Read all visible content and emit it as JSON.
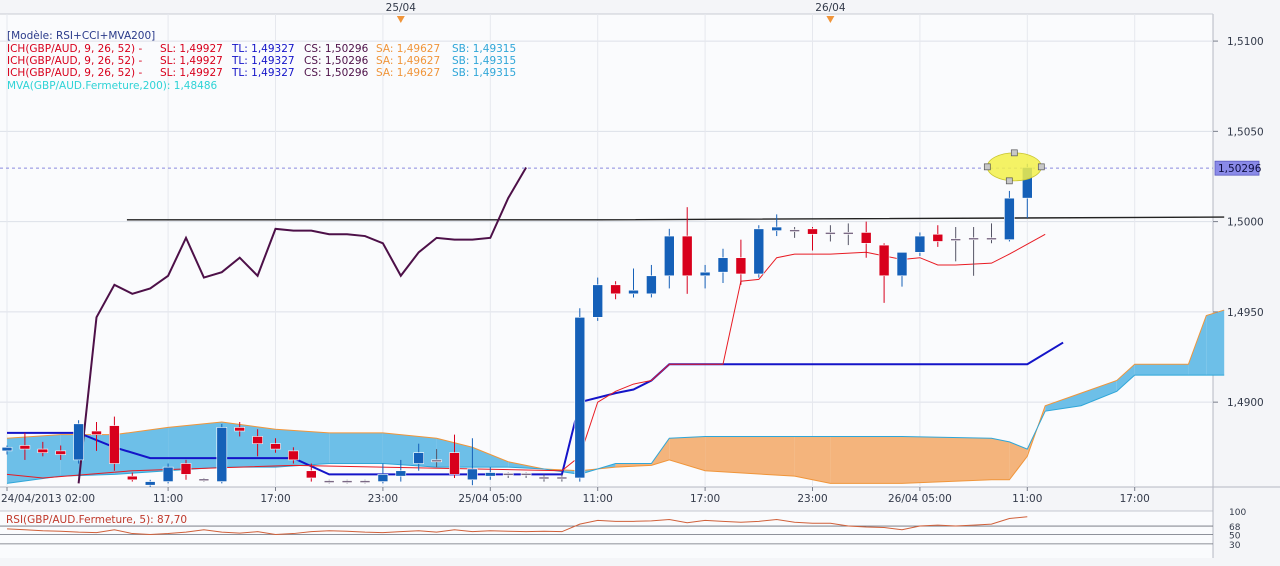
{
  "chart_data": [
    {
      "type": "candlestick",
      "model_label": "[Modèle: RSI+CCI+MVA200]",
      "legend": [
        {
          "name": "ICH(GBP/AUD, 9, 26, 52) -",
          "sl": "SL: 1,49927",
          "tl": "TL: 1,49327",
          "cs": "CS: 1,50296",
          "sa": "SA: 1,49627",
          "sb": "SB: 1,49315"
        },
        {
          "name": "ICH(GBP/AUD, 9, 26, 52) -",
          "sl": "SL: 1,49927",
          "tl": "TL: 1,49327",
          "cs": "CS: 1,50296",
          "sa": "SA: 1,49627",
          "sb": "SB: 1,49315"
        },
        {
          "name": "ICH(GBP/AUD, 9, 26, 52) -",
          "sl": "SL: 1,49927",
          "tl": "TL: 1,49327",
          "cs": "CS: 1,50296",
          "sa": "SA: 1,49627",
          "sb": "SB: 1,49315"
        }
      ],
      "mva_legend": "MVA(GBP/AUD.Fermeture,200): 1,48486",
      "y_ticks": [
        {
          "v": 1.51,
          "label": "1,5100"
        },
        {
          "v": 1.505,
          "label": "1,5050"
        },
        {
          "v": 1.5,
          "label": "1,5000"
        },
        {
          "v": 1.495,
          "label": "1,4950"
        },
        {
          "v": 1.49,
          "label": "1,4900"
        }
      ],
      "ylim": [
        1.4853,
        1.5115
      ],
      "x_period_count": 68,
      "x_ticks": [
        {
          "i": 0,
          "label": "24/04/2013 02:00"
        },
        {
          "i": 9,
          "label": "11:00"
        },
        {
          "i": 15,
          "label": "17:00"
        },
        {
          "i": 21,
          "label": "23:00"
        },
        {
          "i": 27,
          "label": "25/04 05:00"
        },
        {
          "i": 33,
          "label": "11:00"
        },
        {
          "i": 39,
          "label": "17:00"
        },
        {
          "i": 45,
          "label": "23:00"
        },
        {
          "i": 51,
          "label": "26/04 05:00"
        },
        {
          "i": 57,
          "label": "11:00"
        },
        {
          "i": 63,
          "label": "17:00"
        }
      ],
      "top_markers": [
        {
          "i": 22,
          "label": "25/04"
        },
        {
          "i": 46,
          "label": "26/04"
        }
      ],
      "current_price": {
        "value": 1.50296,
        "label": "1,50296"
      },
      "resistance_line": [
        [
          6.7,
          1.5001
        ],
        [
          33,
          1.5001
        ],
        [
          68,
          1.50025
        ]
      ],
      "candles": [
        {
          "i": 0,
          "o": 1.4873,
          "h": 1.4876,
          "l": 1.4871,
          "c": 1.4875
        },
        {
          "i": 1,
          "o": 1.4876,
          "h": 1.4883,
          "l": 1.4868,
          "c": 1.4874
        },
        {
          "i": 2,
          "o": 1.4874,
          "h": 1.4878,
          "l": 1.487,
          "c": 1.4872
        },
        {
          "i": 3,
          "o": 1.4873,
          "h": 1.4876,
          "l": 1.4868,
          "c": 1.4871
        },
        {
          "i": 4,
          "o": 1.4868,
          "h": 1.489,
          "l": 1.4866,
          "c": 1.4888
        },
        {
          "i": 5,
          "o": 1.4884,
          "h": 1.4889,
          "l": 1.4873,
          "c": 1.4882
        },
        {
          "i": 6,
          "o": 1.4887,
          "h": 1.4892,
          "l": 1.4862,
          "c": 1.4866
        },
        {
          "i": 7,
          "o": 1.4859,
          "h": 1.4861,
          "l": 1.4856,
          "c": 1.4857
        },
        {
          "i": 8,
          "o": 1.4854,
          "h": 1.4857,
          "l": 1.4853,
          "c": 1.4856
        },
        {
          "i": 9,
          "o": 1.4856,
          "h": 1.4866,
          "l": 1.4855,
          "c": 1.4864
        },
        {
          "i": 10,
          "o": 1.4866,
          "h": 1.4868,
          "l": 1.4857,
          "c": 1.486
        },
        {
          "i": 11,
          "o": 1.4857,
          "h": 1.4858,
          "l": 1.4856,
          "c": 1.4857
        },
        {
          "i": 12,
          "o": 1.4856,
          "h": 1.4888,
          "l": 1.4855,
          "c": 1.4886
        },
        {
          "i": 13,
          "o": 1.4886,
          "h": 1.4889,
          "l": 1.4881,
          "c": 1.4884
        },
        {
          "i": 14,
          "o": 1.4881,
          "h": 1.4885,
          "l": 1.487,
          "c": 1.4877
        },
        {
          "i": 15,
          "o": 1.4877,
          "h": 1.488,
          "l": 1.4872,
          "c": 1.4874
        },
        {
          "i": 16,
          "o": 1.4873,
          "h": 1.4875,
          "l": 1.4866,
          "c": 1.4868
        },
        {
          "i": 17,
          "o": 1.4862,
          "h": 1.4866,
          "l": 1.4856,
          "c": 1.4858
        },
        {
          "i": 18,
          "o": 1.4856,
          "h": 1.4857,
          "l": 1.4855,
          "c": 1.4856
        },
        {
          "i": 19,
          "o": 1.4856,
          "h": 1.4857,
          "l": 1.4855,
          "c": 1.4856
        },
        {
          "i": 20,
          "o": 1.4856,
          "h": 1.4857,
          "l": 1.4855,
          "c": 1.4856
        },
        {
          "i": 21,
          "o": 1.4856,
          "h": 1.4866,
          "l": 1.4855,
          "c": 1.486
        },
        {
          "i": 22,
          "o": 1.4859,
          "h": 1.4868,
          "l": 1.4856,
          "c": 1.4862
        },
        {
          "i": 23,
          "o": 1.4866,
          "h": 1.4877,
          "l": 1.4862,
          "c": 1.4872
        },
        {
          "i": 24,
          "o": 1.4868,
          "h": 1.4874,
          "l": 1.4864,
          "c": 1.4867
        },
        {
          "i": 25,
          "o": 1.4872,
          "h": 1.4882,
          "l": 1.4858,
          "c": 1.486
        },
        {
          "i": 26,
          "o": 1.4857,
          "h": 1.488,
          "l": 1.4854,
          "c": 1.4863
        },
        {
          "i": 27,
          "o": 1.4859,
          "h": 1.4864,
          "l": 1.4857,
          "c": 1.4861
        },
        {
          "i": 28,
          "o": 1.486,
          "h": 1.4861,
          "l": 1.4858,
          "c": 1.486
        },
        {
          "i": 29,
          "o": 1.486,
          "h": 1.4861,
          "l": 1.4858,
          "c": 1.486
        },
        {
          "i": 30,
          "o": 1.4858,
          "h": 1.486,
          "l": 1.4856,
          "c": 1.4858
        },
        {
          "i": 31,
          "o": 1.4858,
          "h": 1.486,
          "l": 1.4856,
          "c": 1.4858
        },
        {
          "i": 32,
          "o": 1.4858,
          "h": 1.4952,
          "l": 1.4856,
          "c": 1.4947
        },
        {
          "i": 33,
          "o": 1.4947,
          "h": 1.4969,
          "l": 1.4945,
          "c": 1.4965
        },
        {
          "i": 34,
          "o": 1.4965,
          "h": 1.4967,
          "l": 1.4957,
          "c": 1.496
        },
        {
          "i": 35,
          "o": 1.496,
          "h": 1.4974,
          "l": 1.4958,
          "c": 1.4962
        },
        {
          "i": 36,
          "o": 1.496,
          "h": 1.4976,
          "l": 1.4958,
          "c": 1.497
        },
        {
          "i": 37,
          "o": 1.497,
          "h": 1.4996,
          "l": 1.4963,
          "c": 1.4992
        },
        {
          "i": 38,
          "o": 1.4992,
          "h": 1.5008,
          "l": 1.496,
          "c": 1.497
        },
        {
          "i": 39,
          "o": 1.497,
          "h": 1.4976,
          "l": 1.4963,
          "c": 1.4972
        },
        {
          "i": 40,
          "o": 1.4972,
          "h": 1.4985,
          "l": 1.4966,
          "c": 1.498
        },
        {
          "i": 41,
          "o": 1.498,
          "h": 1.499,
          "l": 1.4965,
          "c": 1.4971
        },
        {
          "i": 42,
          "o": 1.4971,
          "h": 1.4998,
          "l": 1.4969,
          "c": 1.4996
        },
        {
          "i": 43,
          "o": 1.4995,
          "h": 1.5004,
          "l": 1.4992,
          "c": 1.4997
        },
        {
          "i": 44,
          "o": 1.4995,
          "h": 1.4997,
          "l": 1.4991,
          "c": 1.4995
        },
        {
          "i": 45,
          "o": 1.4996,
          "h": 1.4997,
          "l": 1.4984,
          "c": 1.4993
        },
        {
          "i": 46,
          "o": 1.4993,
          "h": 1.4998,
          "l": 1.4989,
          "c": 1.4994
        },
        {
          "i": 47,
          "o": 1.4993,
          "h": 1.4999,
          "l": 1.4987,
          "c": 1.4994
        },
        {
          "i": 48,
          "o": 1.4994,
          "h": 1.5,
          "l": 1.498,
          "c": 1.4988
        },
        {
          "i": 49,
          "o": 1.4987,
          "h": 1.4988,
          "l": 1.4955,
          "c": 1.497
        },
        {
          "i": 50,
          "o": 1.497,
          "h": 1.4983,
          "l": 1.4964,
          "c": 1.4983
        },
        {
          "i": 51,
          "o": 1.4983,
          "h": 1.4994,
          "l": 1.4981,
          "c": 1.4992
        },
        {
          "i": 52,
          "o": 1.4993,
          "h": 1.4998,
          "l": 1.4986,
          "c": 1.4989
        },
        {
          "i": 53,
          "o": 1.499,
          "h": 1.4997,
          "l": 1.4978,
          "c": 1.499
        },
        {
          "i": 54,
          "o": 1.499,
          "h": 1.4997,
          "l": 1.497,
          "c": 1.4991
        },
        {
          "i": 55,
          "o": 1.499,
          "h": 1.4999,
          "l": 1.4988,
          "c": 1.4991
        },
        {
          "i": 56,
          "o": 1.499,
          "h": 1.5017,
          "l": 1.4989,
          "c": 1.5013
        },
        {
          "i": 57,
          "o": 1.5013,
          "h": 1.5032,
          "l": 1.5002,
          "c": 1.503
        }
      ],
      "ichimoku": {
        "kijun": [
          [
            0,
            1.4883
          ],
          [
            4,
            1.4883
          ],
          [
            6,
            1.4875
          ],
          [
            8,
            1.4869
          ],
          [
            16,
            1.4869
          ],
          [
            18,
            1.486
          ],
          [
            31,
            1.486
          ],
          [
            32,
            1.49
          ],
          [
            34,
            1.4905
          ],
          [
            35,
            1.4907
          ],
          [
            36,
            1.4912
          ],
          [
            37,
            1.4921
          ],
          [
            57,
            1.4921
          ],
          [
            59,
            1.4933
          ]
        ],
        "tenkan": [
          [
            0,
            1.486
          ],
          [
            2,
            1.4858
          ],
          [
            7,
            1.4862
          ],
          [
            16,
            1.4865
          ],
          [
            31,
            1.4862
          ],
          [
            32,
            1.487
          ],
          [
            33,
            1.49
          ],
          [
            34,
            1.4906
          ],
          [
            35,
            1.491
          ],
          [
            36,
            1.4912
          ],
          [
            37,
            1.4921
          ],
          [
            40,
            1.4921
          ],
          [
            41,
            1.4967
          ],
          [
            42,
            1.4968
          ],
          [
            43,
            1.498
          ],
          [
            44,
            1.4982
          ],
          [
            46,
            1.4982
          ],
          [
            48,
            1.4983
          ],
          [
            49,
            1.4981
          ],
          [
            50,
            1.4979
          ],
          [
            51,
            1.498
          ],
          [
            52,
            1.4976
          ],
          [
            53,
            1.4976
          ],
          [
            55,
            1.4977
          ],
          [
            56,
            1.4982
          ],
          [
            58,
            1.4993
          ]
        ],
        "chikou": [
          [
            4,
            1.4855
          ],
          [
            5,
            1.4947
          ],
          [
            6,
            1.4965
          ],
          [
            7,
            1.496
          ],
          [
            8,
            1.4963
          ],
          [
            9,
            1.497
          ],
          [
            10,
            1.4991
          ],
          [
            11,
            1.4969
          ],
          [
            12,
            1.4972
          ],
          [
            13,
            1.498
          ],
          [
            14,
            1.497
          ],
          [
            15,
            1.4996
          ],
          [
            16,
            1.4995
          ],
          [
            17,
            1.4995
          ],
          [
            18,
            1.4993
          ],
          [
            19,
            1.4993
          ],
          [
            20,
            1.4992
          ],
          [
            21,
            1.4988
          ],
          [
            22,
            1.497
          ],
          [
            23,
            1.4983
          ],
          [
            24,
            1.4991
          ],
          [
            25,
            1.499
          ],
          [
            26,
            1.499
          ],
          [
            27,
            1.4991
          ],
          [
            28,
            1.5013
          ],
          [
            29,
            1.503
          ]
        ],
        "cloud": [
          {
            "i": 0,
            "sa": 1.488,
            "sb": 1.4855
          },
          {
            "i": 3,
            "sa": 1.4882,
            "sb": 1.4859
          },
          {
            "i": 6,
            "sa": 1.4882,
            "sb": 1.486
          },
          {
            "i": 9,
            "sa": 1.4886,
            "sb": 1.4862
          },
          {
            "i": 12,
            "sa": 1.4889,
            "sb": 1.4864
          },
          {
            "i": 15,
            "sa": 1.4885,
            "sb": 1.4864
          },
          {
            "i": 18,
            "sa": 1.4883,
            "sb": 1.4866
          },
          {
            "i": 21,
            "sa": 1.4883,
            "sb": 1.4866
          },
          {
            "i": 24,
            "sa": 1.488,
            "sb": 1.4864
          },
          {
            "i": 26,
            "sa": 1.4875,
            "sb": 1.4864
          },
          {
            "i": 28,
            "sa": 1.4867,
            "sb": 1.4864
          },
          {
            "i": 30,
            "sa": 1.4863,
            "sb": 1.4863
          },
          {
            "i": 32,
            "sa": 1.4862,
            "sb": 1.486
          },
          {
            "i": 34,
            "sa": 1.4864,
            "sb": 1.4866
          },
          {
            "i": 36,
            "sa": 1.4865,
            "sb": 1.4866
          },
          {
            "i": 37,
            "sa": 1.4868,
            "sb": 1.488
          },
          {
            "i": 39,
            "sa": 1.4862,
            "sb": 1.4881
          },
          {
            "i": 44,
            "sa": 1.4859,
            "sb": 1.4881
          },
          {
            "i": 46,
            "sa": 1.4855,
            "sb": 1.4881
          },
          {
            "i": 50,
            "sa": 1.4855,
            "sb": 1.4881
          },
          {
            "i": 55,
            "sa": 1.4857,
            "sb": 1.488
          },
          {
            "i": 56,
            "sa": 1.4857,
            "sb": 1.4878
          },
          {
            "i": 57,
            "sa": 1.487,
            "sb": 1.4874
          },
          {
            "i": 58,
            "sa": 1.4898,
            "sb": 1.4895
          },
          {
            "i": 60,
            "sa": 1.4905,
            "sb": 1.4898
          },
          {
            "i": 62,
            "sa": 1.4912,
            "sb": 1.4906
          },
          {
            "i": 63,
            "sa": 1.4921,
            "sb": 1.4915
          },
          {
            "i": 66,
            "sa": 1.4921,
            "sb": 1.4915
          },
          {
            "i": 67,
            "sa": 1.4948,
            "sb": 1.4915
          },
          {
            "i": 68,
            "sa": 1.4951,
            "sb": 1.4915
          }
        ]
      },
      "colors": {
        "up": "#1560b8",
        "down": "#d8001c",
        "neutral": "#7b6a86",
        "kijun": "#1414c8",
        "tenkan": "#e81b23",
        "chikou": "#4d1048",
        "cloud_bull": "#6dbfe8",
        "cloud_bear": "#f4b47c",
        "resistance": "#222222",
        "current_dash": "#8a8ae0",
        "highlight": "#f2f04a"
      }
    },
    {
      "type": "line",
      "label": "RSI(GBP/AUD.Fermeture, 5): 87,70",
      "ylim": [
        0,
        100
      ],
      "y_ticks": [
        {
          "v": 100,
          "label": "100"
        },
        {
          "v": 68,
          "label": "68"
        },
        {
          "v": 50,
          "label": "50"
        },
        {
          "v": 30,
          "label": "30"
        }
      ],
      "values": [
        62,
        60,
        58,
        57,
        55,
        54,
        60,
        52,
        50,
        52,
        55,
        60,
        55,
        53,
        56,
        50,
        52,
        56,
        58,
        57,
        55,
        54,
        56,
        58,
        55,
        60,
        56,
        58,
        57,
        56,
        57,
        56,
        72,
        80,
        78,
        78,
        79,
        82,
        75,
        80,
        78,
        76,
        78,
        82,
        76,
        74,
        74,
        68,
        66,
        65,
        60,
        68,
        70,
        68,
        70,
        72,
        84,
        87.7
      ]
    }
  ]
}
